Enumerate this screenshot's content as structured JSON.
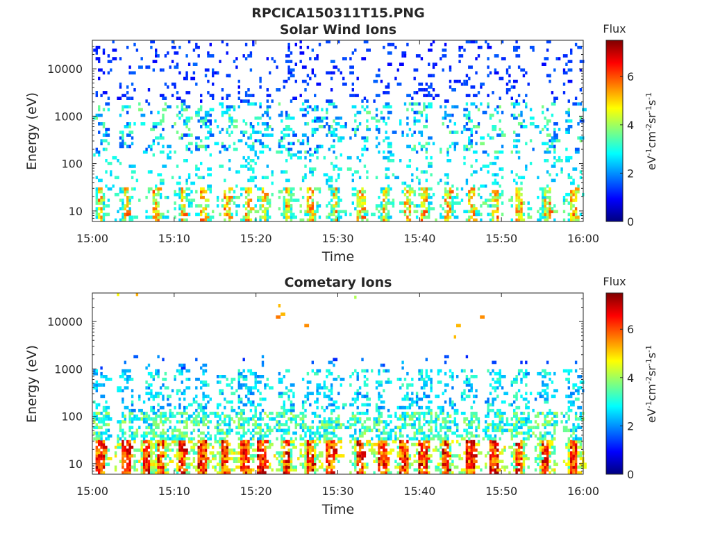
{
  "figure_title": "RPCICA150311T15.PNG",
  "colormap": [
    "#00007f",
    "#0000ff",
    "#007fff",
    "#00ffff",
    "#7fff7f",
    "#ffff00",
    "#ff7f00",
    "#ff0000",
    "#7f0000"
  ],
  "chart_data": [
    {
      "type": "heatmap",
      "title": "Solar Wind Ions",
      "xlabel": "Time",
      "ylabel": "Energy (eV)",
      "x_ticks": [
        "15:00",
        "15:10",
        "15:20",
        "15:30",
        "15:40",
        "15:50",
        "16:00"
      ],
      "x_range_minutes": [
        0,
        60
      ],
      "y_scale": "log",
      "y_ticks": [
        "10",
        "100",
        "1000",
        "10000"
      ],
      "y_range": [
        6,
        40000
      ],
      "colorbar": {
        "title": "Flux",
        "label": "eV-1cm-2sr-1s-1",
        "ticks": [
          "0",
          "2",
          "4",
          "6"
        ],
        "range": [
          0,
          7.5
        ]
      },
      "activity_bursts_minutes": [
        0.8,
        4,
        7.6,
        11,
        13.5,
        16.3,
        19,
        20.8,
        23.7,
        26.5,
        29.5,
        32.5,
        35.6,
        38.4,
        40.5,
        43.4,
        46.2,
        49,
        52,
        55.4,
        58.6
      ],
      "grid": false
    },
    {
      "type": "heatmap",
      "title": "Cometary Ions",
      "xlabel": "Time",
      "ylabel": "Energy (eV)",
      "x_ticks": [
        "15:00",
        "15:10",
        "15:20",
        "15:30",
        "15:40",
        "15:50",
        "16:00"
      ],
      "x_range_minutes": [
        0,
        60
      ],
      "y_scale": "log",
      "y_ticks": [
        "10",
        "100",
        "1000",
        "10000"
      ],
      "y_range": [
        6,
        40000
      ],
      "colorbar": {
        "title": "Flux",
        "label": "eV-1cm-2sr-1s-1",
        "ticks": [
          "0",
          "2",
          "4",
          "6"
        ],
        "range": [
          0,
          7.5
        ]
      },
      "activity_bursts_minutes": [
        0.8,
        4,
        6.5,
        8.2,
        10.8,
        13.3,
        16,
        18.5,
        20.5,
        23.6,
        26.5,
        29,
        32.5,
        35.3,
        38,
        40.3,
        43,
        46,
        49,
        52,
        55.2,
        58.6
      ],
      "grid": false
    }
  ]
}
